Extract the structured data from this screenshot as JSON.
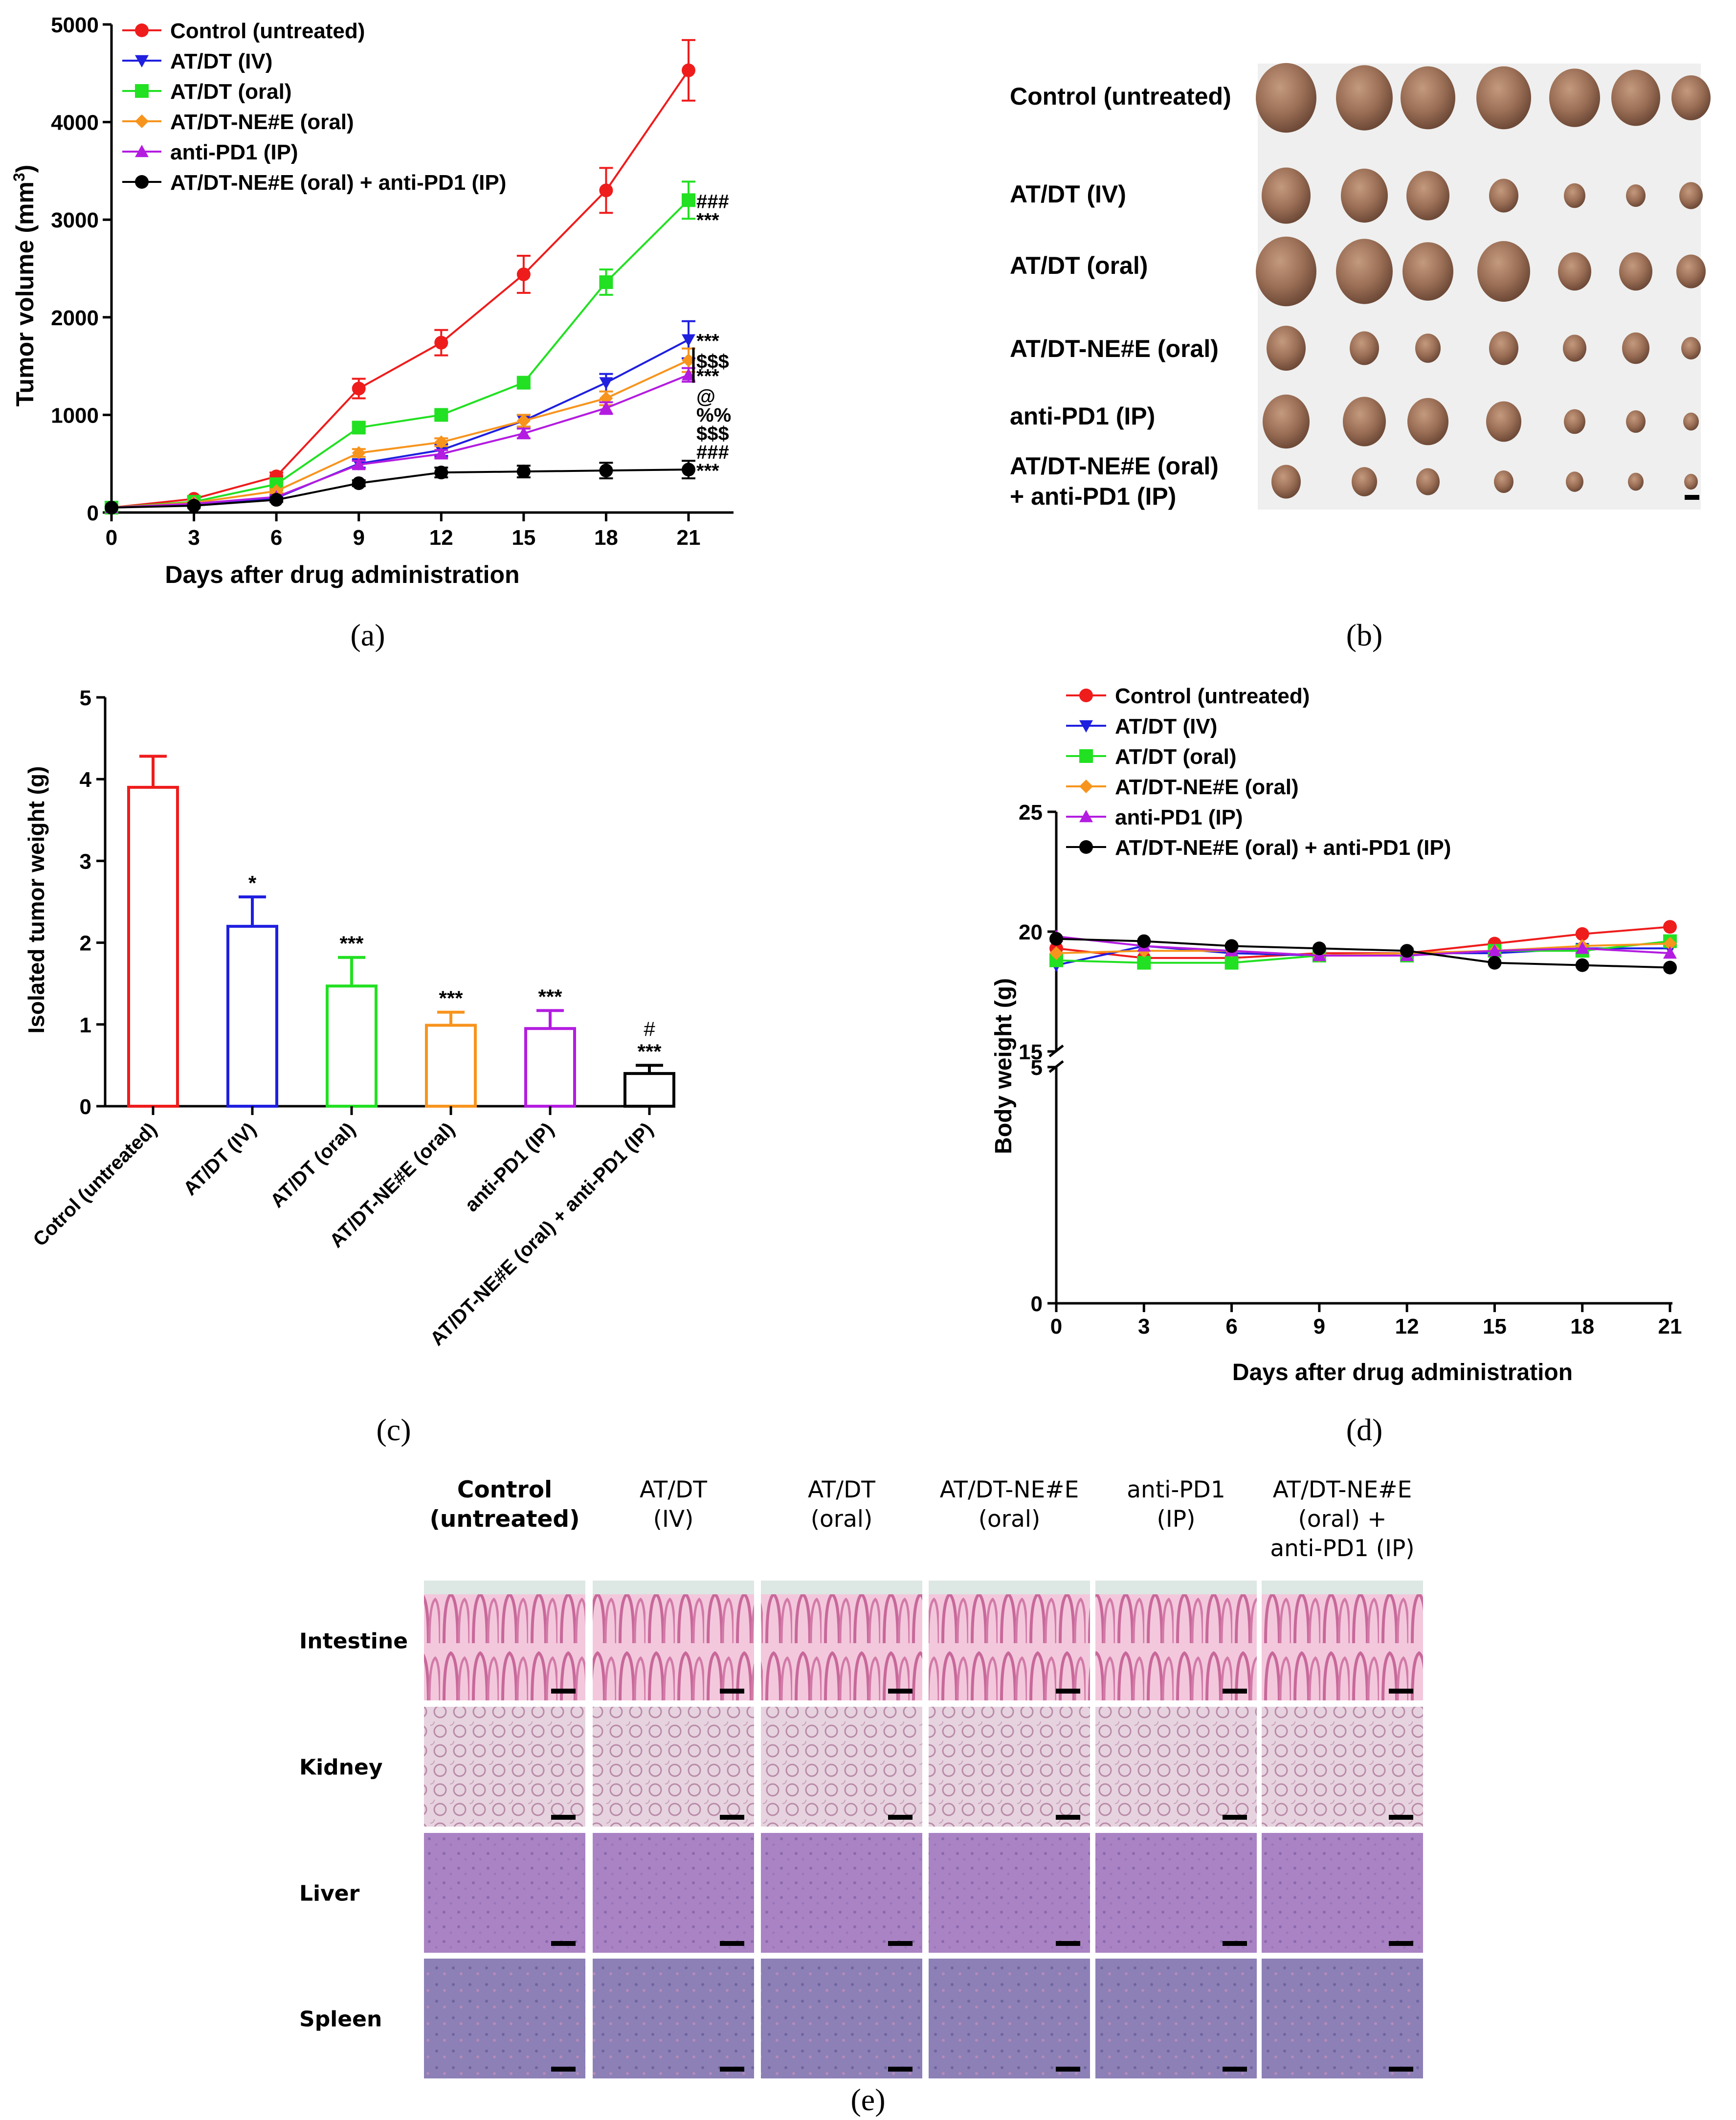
{
  "colors": {
    "control": "#ef1c1c",
    "iv": "#1f1fe0",
    "oral": "#22e022",
    "ne_oral": "#f7941d",
    "pd1": "#b31ce0",
    "combo": "#000000"
  },
  "panel_labels": [
    "(a)",
    "(b)",
    "(c)",
    "(d)",
    "(e)"
  ],
  "chart_data": [
    {
      "type": "line",
      "panel": "a",
      "xlabel": "Days after drug administration",
      "ylabel": "Tumor volume (mm",
      "ylabel_sup": "3",
      "ylabel_close": ")",
      "x": [
        0,
        3,
        6,
        9,
        12,
        15,
        18,
        21
      ],
      "xlim": [
        0,
        22.5
      ],
      "ylim": [
        0,
        5000
      ],
      "xticks": [
        "0",
        "3",
        "6",
        "9",
        "12",
        "15",
        "18",
        "21"
      ],
      "yticks": [
        "0",
        "1000",
        "2000",
        "3000",
        "4000",
        "5000"
      ],
      "legend_position": "top-left",
      "series": [
        {
          "name": "Control (untreated)",
          "color": "#ef1c1c",
          "marker": "circle",
          "values": [
            50,
            140,
            370,
            1270,
            1740,
            2440,
            3300,
            4530
          ],
          "errors": [
            0,
            20,
            40,
            100,
            130,
            190,
            230,
            310
          ]
        },
        {
          "name": "AT/DT (IV)",
          "color": "#1f1fe0",
          "marker": "triangle-down",
          "values": [
            50,
            80,
            150,
            500,
            640,
            940,
            1330,
            1770
          ],
          "errors": [
            0,
            10,
            20,
            40,
            60,
            60,
            90,
            190
          ]
        },
        {
          "name": "AT/DT (oral)",
          "color": "#22e022",
          "marker": "square",
          "values": [
            50,
            110,
            290,
            870,
            1000,
            1330,
            2360,
            3200
          ],
          "errors": [
            0,
            10,
            30,
            50,
            40,
            50,
            130,
            190
          ]
        },
        {
          "name": "AT/DT-NE#E (oral)",
          "color": "#f7941d",
          "marker": "diamond",
          "values": [
            50,
            100,
            220,
            610,
            720,
            940,
            1170,
            1560
          ],
          "errors": [
            0,
            10,
            20,
            40,
            40,
            60,
            70,
            120
          ]
        },
        {
          "name": "anti-PD1 (IP)",
          "color": "#b31ce0",
          "marker": "triangle-up",
          "values": [
            50,
            90,
            160,
            490,
            600,
            810,
            1070,
            1410
          ],
          "errors": [
            0,
            10,
            20,
            40,
            40,
            50,
            60,
            70
          ]
        },
        {
          "name": "AT/DT-NE#E (oral) + anti-PD1 (IP)",
          "color": "#000000",
          "marker": "circle",
          "values": [
            50,
            70,
            130,
            300,
            410,
            420,
            430,
            440
          ],
          "errors": [
            0,
            10,
            20,
            30,
            50,
            60,
            80,
            90
          ]
        }
      ],
      "annotations": [
        {
          "text": "###",
          "series": 2,
          "offset": 0
        },
        {
          "text": "***",
          "series": 2,
          "offset": 1
        },
        {
          "text": "***",
          "series": 1,
          "offset": 0
        },
        {
          "text": "$$$",
          "series": 3,
          "offset": 0
        },
        {
          "text": "***",
          "series": 4,
          "offset": 0
        },
        {
          "text": "@",
          "series": 5,
          "offset": -4
        },
        {
          "text": "%%",
          "series": 5,
          "offset": -3
        },
        {
          "text": "$$$",
          "series": 5,
          "offset": -2
        },
        {
          "text": "###",
          "series": 5,
          "offset": -1
        },
        {
          "text": "***",
          "series": 5,
          "offset": 0
        }
      ]
    },
    {
      "type": "bar",
      "panel": "c",
      "ylabel": "Isolated tumor weight (g)",
      "ylim": [
        0,
        5
      ],
      "yticks": [
        "0",
        "1",
        "2",
        "3",
        "4",
        "5"
      ],
      "categories": [
        "Cotrol (untreated)",
        "AT/DT (IV)",
        "AT/DT (oral)",
        "AT/DT-NE#E (oral)",
        "anti-PD1 (IP)",
        "AT/DT-NE#E (oral) + anti-PD1 (IP)"
      ],
      "values": [
        3.9,
        2.2,
        1.47,
        0.99,
        0.95,
        0.4
      ],
      "errors": [
        0.38,
        0.36,
        0.35,
        0.16,
        0.22,
        0.1
      ],
      "colors": [
        "#ef1c1c",
        "#1f1fe0",
        "#22e022",
        "#f7941d",
        "#b31ce0",
        "#000000"
      ],
      "sig": [
        "",
        "*",
        "***",
        "***",
        "***",
        "***"
      ],
      "sig2": [
        "",
        "",
        "",
        "",
        "",
        "#"
      ]
    },
    {
      "type": "line",
      "panel": "d",
      "xlabel": "Days after drug administration",
      "ylabel": "Body weight (g)",
      "x": [
        0,
        3,
        6,
        9,
        12,
        15,
        18,
        21
      ],
      "xticks": [
        "0",
        "3",
        "6",
        "9",
        "12",
        "15",
        "18",
        "21"
      ],
      "y_axis_break": {
        "lower": [
          0,
          5
        ],
        "upper": [
          15,
          25
        ]
      },
      "yticks_lower": [
        "0",
        "5"
      ],
      "yticks_upper": [
        "15",
        "20",
        "25"
      ],
      "legend_position": "top-left",
      "series": [
        {
          "name": "Control (untreated)",
          "color": "#ef1c1c",
          "marker": "circle",
          "values": [
            19.3,
            18.9,
            18.9,
            19.1,
            19.1,
            19.5,
            19.9,
            20.2
          ]
        },
        {
          "name": "AT/DT (IV)",
          "color": "#1f1fe0",
          "marker": "triangle-down",
          "values": [
            18.6,
            19.4,
            19.1,
            19.0,
            19.1,
            19.1,
            19.3,
            19.3
          ]
        },
        {
          "name": "AT/DT (oral)",
          "color": "#22e022",
          "marker": "square",
          "values": [
            18.8,
            18.7,
            18.7,
            19.0,
            19.0,
            19.2,
            19.2,
            19.6
          ]
        },
        {
          "name": "AT/DT-NE#E (oral)",
          "color": "#f7941d",
          "marker": "diamond",
          "values": [
            19.1,
            19.2,
            19.2,
            19.0,
            19.1,
            19.2,
            19.4,
            19.5
          ]
        },
        {
          "name": "anti-PD1 (IP)",
          "color": "#b31ce0",
          "marker": "triangle-up",
          "values": [
            19.8,
            19.4,
            19.2,
            19.0,
            19.0,
            19.2,
            19.3,
            19.1
          ]
        },
        {
          "name": "AT/DT-NE#E (oral) + anti-PD1 (IP)",
          "color": "#000000",
          "marker": "circle",
          "values": [
            19.7,
            19.6,
            19.4,
            19.3,
            19.2,
            18.7,
            18.6,
            18.5
          ]
        }
      ]
    }
  ],
  "photo_b": {
    "labels": [
      "Control (untreated)",
      "AT/DT (IV)",
      "AT/DT (oral)",
      "AT/DT-NE#E (oral)",
      "anti-PD1 (IP)",
      "AT/DT-NE#E (oral)",
      "+ anti-PD1 (IP)"
    ]
  },
  "histology_e": {
    "columns": [
      [
        "Control",
        "(untreated)"
      ],
      [
        "AT/DT",
        "(IV)"
      ],
      [
        "AT/DT",
        "(oral)"
      ],
      [
        "AT/DT-NE#E",
        "(oral)"
      ],
      [
        "anti-PD1",
        "(IP)"
      ],
      [
        "AT/DT-NE#E",
        "(oral) +",
        "anti-PD1 (IP)"
      ]
    ],
    "rows": [
      "Intestine",
      "Kidney",
      "Liver",
      "Spleen"
    ]
  }
}
